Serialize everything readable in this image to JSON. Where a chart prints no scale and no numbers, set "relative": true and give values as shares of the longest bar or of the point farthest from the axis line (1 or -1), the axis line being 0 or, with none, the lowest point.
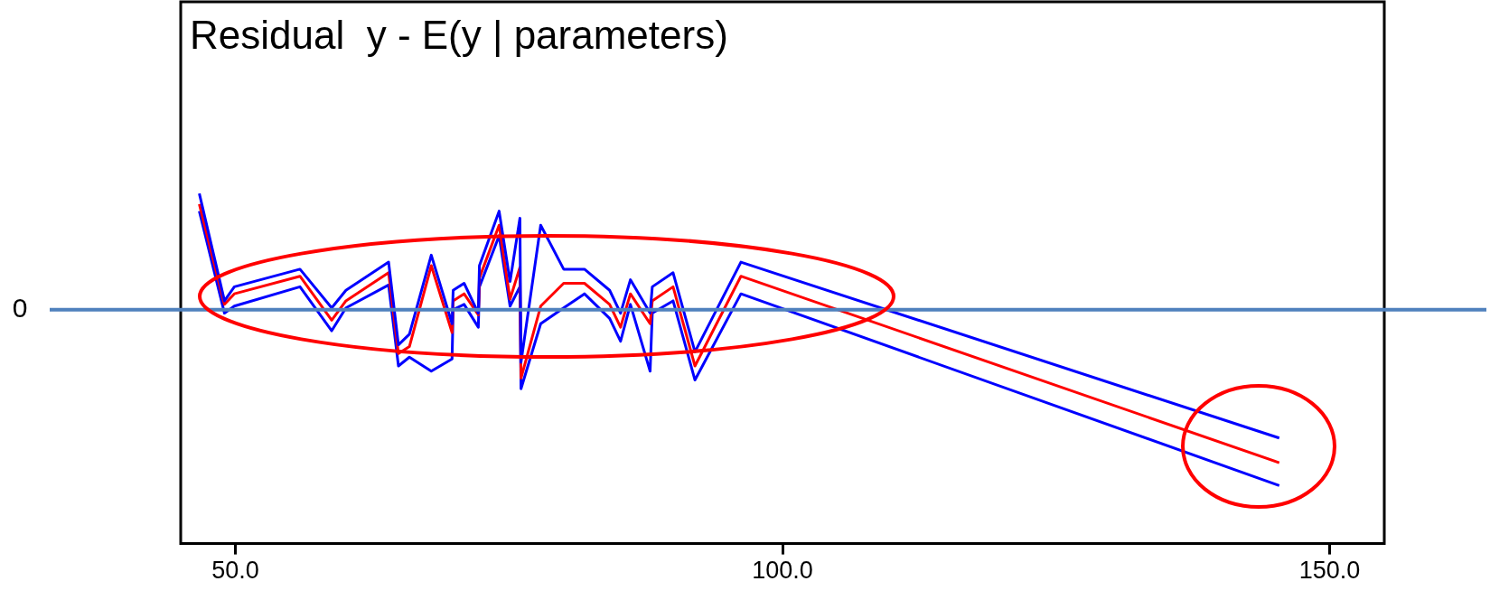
{
  "chart_data": {
    "type": "line",
    "title": "Residual  y - E(y | parameters)",
    "relative": true,
    "marker": "none",
    "line_style": "solid",
    "legend": false,
    "x": [
      46.7,
      49.0,
      49.9,
      55.9,
      58.8,
      60.1,
      64.0,
      64.9,
      65.9,
      67.9,
      69.8,
      69.9,
      70.9,
      72.2,
      72.3,
      74.1,
      75.1,
      76.0,
      76.1,
      77.9,
      80.0,
      81.9,
      84.2,
      85.2,
      86.1,
      87.9,
      88.1,
      90.0,
      92.0,
      96.2,
      145.4
    ],
    "xlim": [
      45,
      155
    ],
    "xticks": [
      {
        "value": 50,
        "label": "50.0"
      },
      {
        "value": 100,
        "label": "100.0"
      },
      {
        "value": 150,
        "label": "150.0"
      }
    ],
    "series": [
      {
        "color": "#0000ff",
        "values": [
          0.66,
          0.05,
          0.13,
          0.23,
          0.01,
          0.11,
          0.27,
          -0.2,
          -0.14,
          0.31,
          -0.08,
          0.11,
          0.15,
          -0.02,
          0.25,
          0.56,
          0.16,
          0.52,
          -0.3,
          0.48,
          0.23,
          0.23,
          0.11,
          -0.02,
          0.17,
          -0.02,
          0.13,
          0.21,
          -0.24,
          0.27,
          -0.73
        ]
      },
      {
        "color": "#ff0000",
        "values": [
          0.6,
          0.03,
          0.09,
          0.19,
          -0.06,
          0.05,
          0.21,
          -0.25,
          -0.21,
          0.25,
          -0.13,
          0.05,
          0.09,
          -0.03,
          0.18,
          0.48,
          0.06,
          0.24,
          -0.39,
          0.02,
          0.15,
          0.15,
          0.03,
          -0.1,
          0.09,
          -0.08,
          0.05,
          0.13,
          -0.32,
          0.19,
          -0.87
        ]
      },
      {
        "color": "#0000ff",
        "values": [
          0.56,
          -0.02,
          0.02,
          0.13,
          -0.12,
          0.01,
          0.14,
          -0.32,
          -0.27,
          -0.35,
          -0.28,
          0.0,
          0.03,
          -0.1,
          0.13,
          0.42,
          0.02,
          0.13,
          -0.45,
          -0.08,
          0.01,
          0.09,
          -0.05,
          -0.18,
          0.03,
          -0.35,
          -0.02,
          0.05,
          -0.4,
          0.09,
          -1.0
        ]
      }
    ],
    "ref_lines": [
      {
        "axis": "y",
        "value": 0,
        "label": "0",
        "color": "#4f81bd"
      }
    ]
  }
}
